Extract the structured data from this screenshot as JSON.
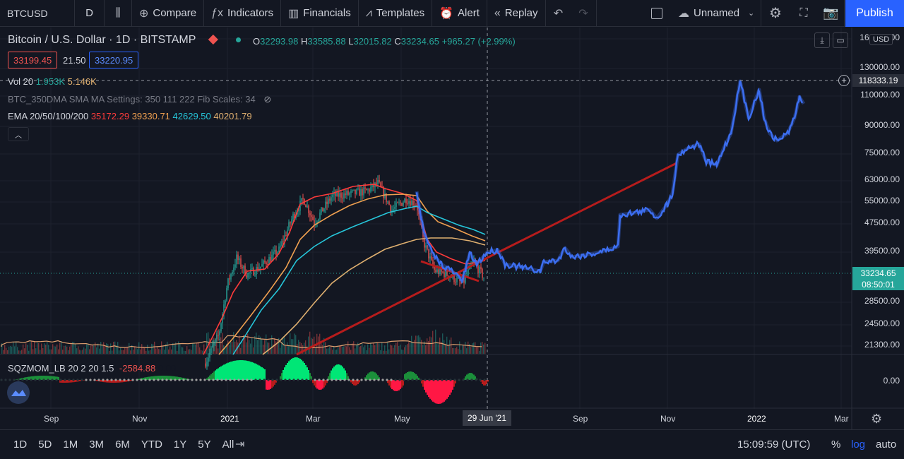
{
  "toolbar": {
    "symbol": "BTCUSD",
    "interval": "D",
    "compare": "Compare",
    "indicators": "Indicators",
    "financials": "Financials",
    "templates": "Templates",
    "alert": "Alert",
    "replay": "Replay",
    "layout_name": "Unnamed",
    "publish": "Publish"
  },
  "legend": {
    "title": "Bitcoin / U.S. Dollar · 1D · BITSTAMP",
    "open_label": "O",
    "open": "32293.98",
    "high_label": "H",
    "high": "33585.88",
    "low_label": "L",
    "low": "32015.82",
    "close_label": "C",
    "close": "33234.65",
    "change": "+965.27 (+2.99%)",
    "bid": "33199.45",
    "spread": "21.50",
    "ask": "33220.95",
    "vol_label": "Vol 20",
    "vol_a": "1.953K",
    "vol_b": "5.146K",
    "btc350": "BTC_350DMA SMA MA Settings: 350 111 222 Fib Scales: 34",
    "ema_label": "EMA 20/50/100/200",
    "ema20": "35172.29",
    "ema50": "39330.71",
    "ema100": "42629.50",
    "ema200": "40201.79",
    "sqz_label": "SQZMOM_LB 20 2 20 1.5",
    "sqz_val": "-2584.88",
    "sqz_val2": "0.00"
  },
  "price_scale": {
    "currency": "USD",
    "ticks": [
      "160000.00",
      "130000.00",
      "110000.00",
      "90000.00",
      "75000.00",
      "63000.00",
      "55000.00",
      "47500.00",
      "39500.00",
      "28500.00",
      "24500.00",
      "21300.00"
    ],
    "crosshair_price": "118333.19",
    "last_price": "33234.65",
    "countdown": "08:50:01",
    "osc_zero": "0.00"
  },
  "time_axis": {
    "ticks": [
      "Sep",
      "Nov",
      "2021",
      "Mar",
      "May",
      "Sep",
      "Nov",
      "2022",
      "Mar"
    ],
    "crosshair_date": "29 Jun '21"
  },
  "bottom": {
    "ranges": [
      "1D",
      "5D",
      "1M",
      "3M",
      "6M",
      "YTD",
      "1Y",
      "5Y",
      "All"
    ],
    "clock": "15:09:59 (UTC)",
    "percent": "%",
    "log": "log",
    "auto": "auto"
  },
  "colors": {
    "background": "#131722",
    "accent": "#2962ff",
    "up": "#26a69a",
    "down": "#ef5350",
    "projection": "#3c6ef0",
    "trendline": "#b71c1c",
    "ema20": "#ff3b3b",
    "ema50": "#f0a050",
    "ema100": "#26c6da",
    "ema200": "#e0b070"
  }
}
